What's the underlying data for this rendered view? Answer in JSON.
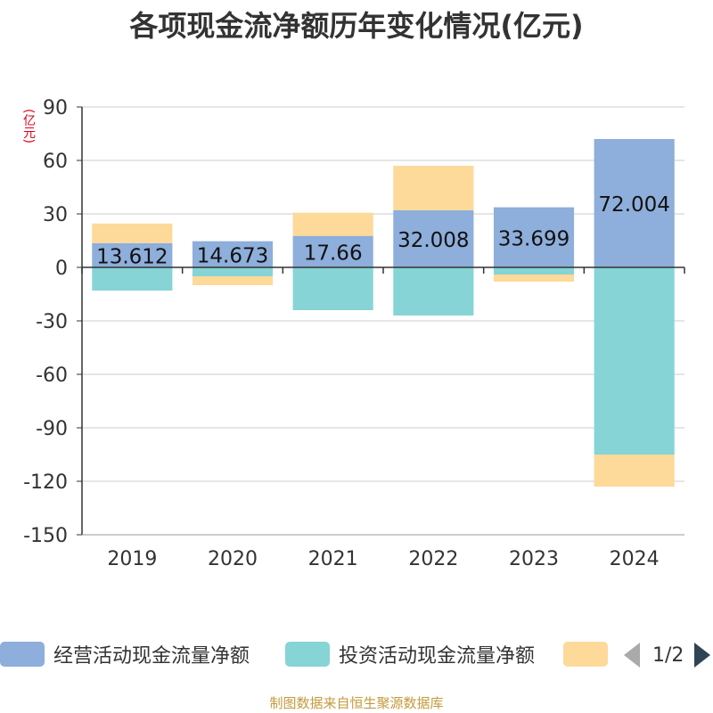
{
  "title": "各项现金流净额历年变化情况(亿元)",
  "unit_label": "(亿元)",
  "footer": "制图数据来自恒生聚源数据库",
  "pager": {
    "text": "1/2"
  },
  "colors": {
    "operating": "#8eaedb",
    "investing": "#86d4d6",
    "financing": "#fdd99a",
    "axis": "#333333",
    "grid": "#cccccc"
  },
  "chart_data": {
    "type": "bar",
    "stacked": true,
    "categories": [
      "2019",
      "2020",
      "2021",
      "2022",
      "2023",
      "2024"
    ],
    "ylim": [
      -150,
      90
    ],
    "yticks": [
      90,
      60,
      30,
      0,
      -30,
      -60,
      -90,
      -120,
      -150
    ],
    "grid": true,
    "legend_position": "bottom",
    "series": [
      {
        "name": "经营活动现金流量净额",
        "values": [
          13.612,
          14.673,
          17.66,
          32.008,
          33.699,
          72.004
        ],
        "show_labels": true
      },
      {
        "name": "投资活动现金流量净额",
        "values": [
          -13,
          -5,
          -24,
          -27,
          -4,
          -105
        ]
      },
      {
        "name": "",
        "values": [
          11,
          -5,
          13,
          25,
          -4,
          -18
        ]
      }
    ],
    "data_labels": [
      "13.612",
      "14.673",
      "17.66",
      "32.008",
      "33.699",
      "72.004"
    ]
  }
}
